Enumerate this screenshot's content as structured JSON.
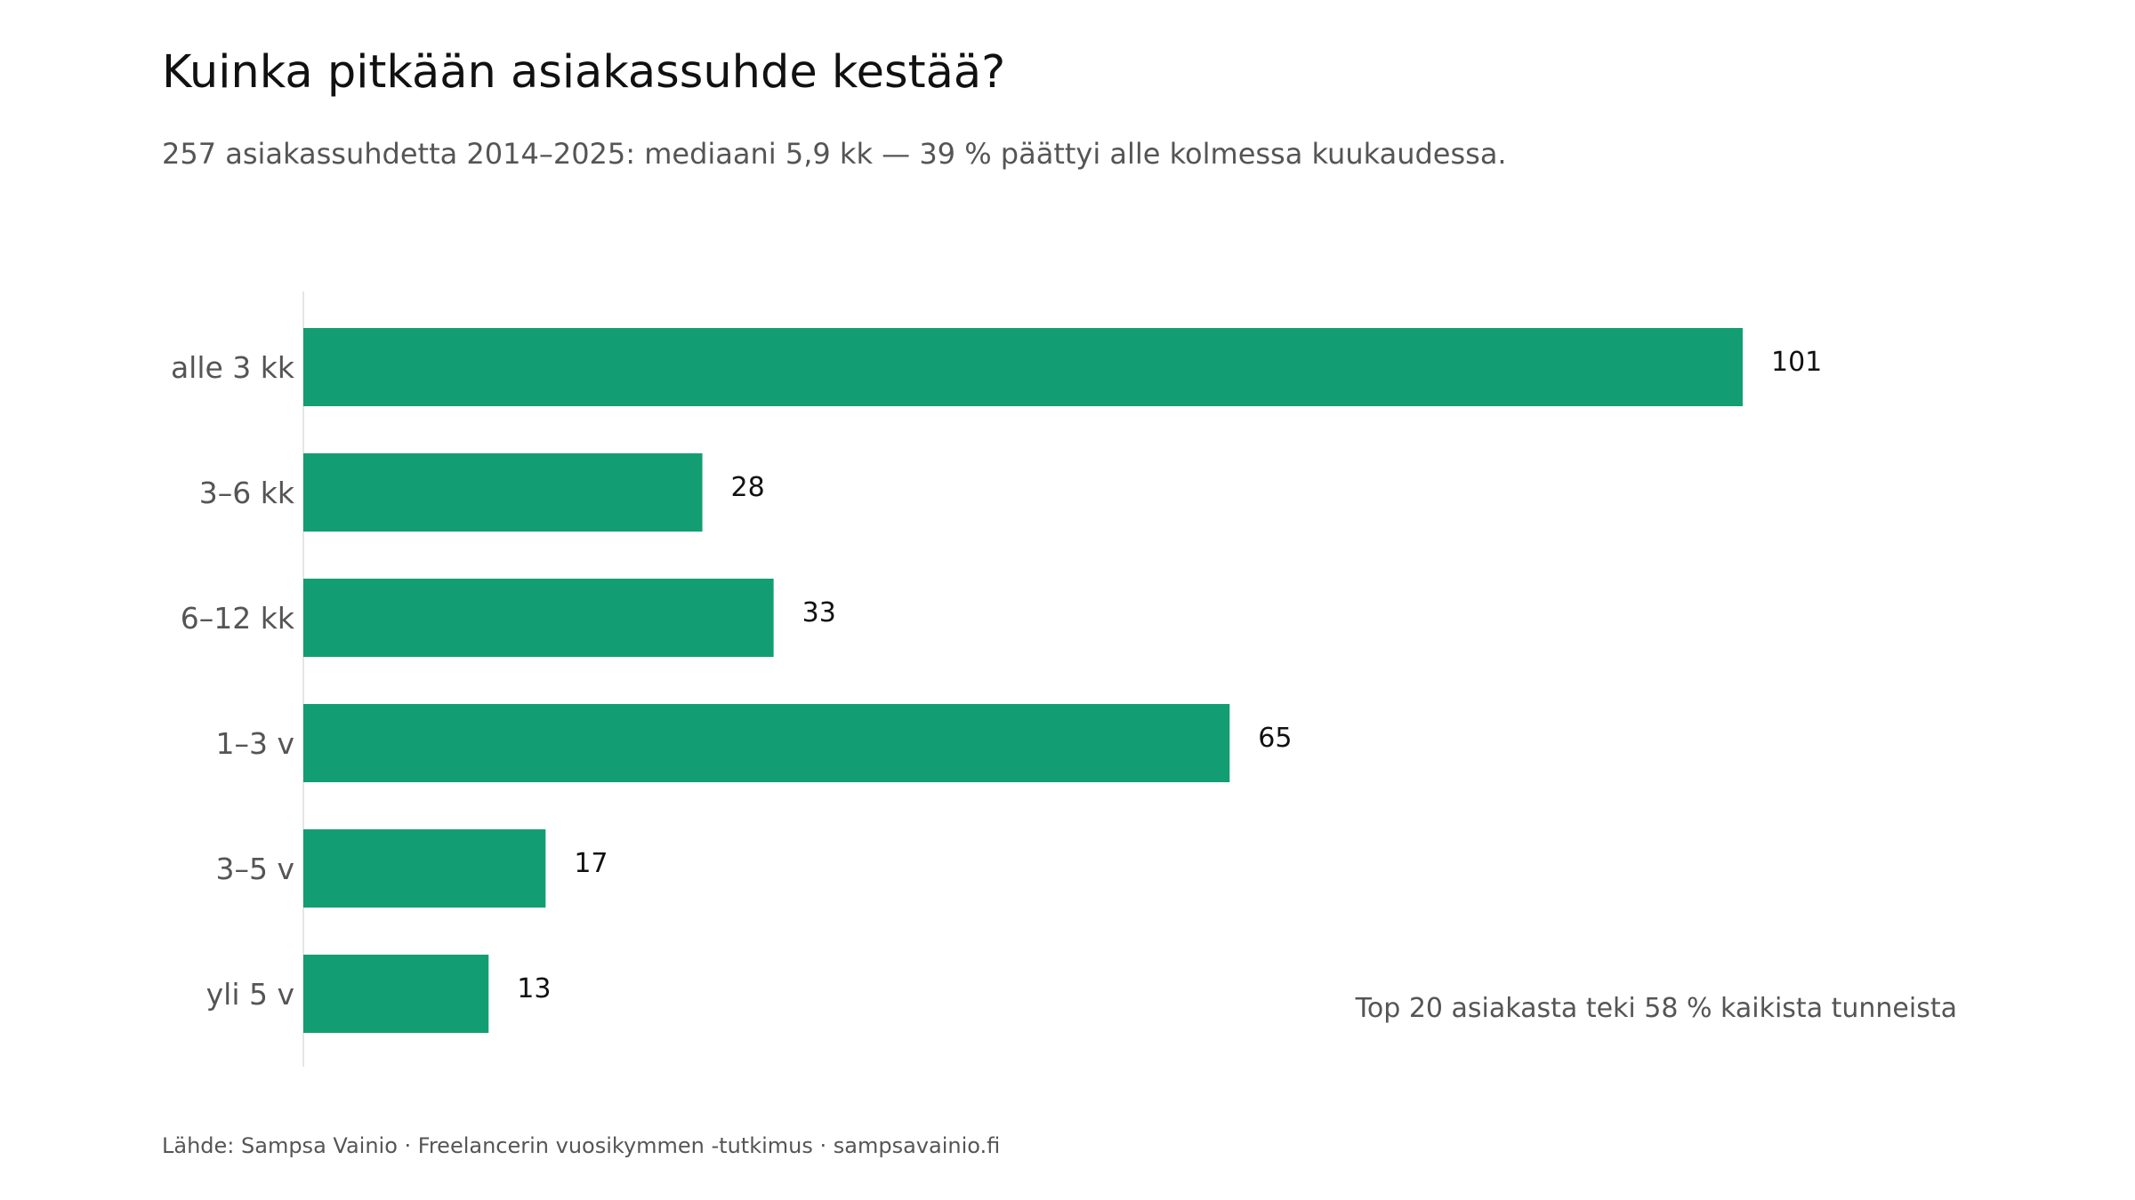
{
  "colors": {
    "bar": "#129e72",
    "axis": "#e6e6e6"
  },
  "chart_data": {
    "type": "bar",
    "orientation": "horizontal",
    "title": "Kuinka pitkään asiakassuhde kestää?",
    "subtitle": "257 asiakassuhdetta 2014–2025: mediaani 5,9 kk — 39 % päättyi alle kolmessa kuukaudessa.",
    "categories": [
      "alle 3 kk",
      "3–6 kk",
      "6–12 kk",
      "1–3 v",
      "3–5 v",
      "yli 5 v"
    ],
    "values": [
      101,
      28,
      33,
      65,
      17,
      13
    ],
    "xlim": [
      0,
      101
    ],
    "grid": false,
    "legend": "none",
    "annotation": "Top 20 asiakasta teki 58 % kaikista tunneista",
    "source": "Lähde: Sampsa Vainio · Freelancerin vuosikymmen -tutkimus · sampsavainio.fi"
  }
}
